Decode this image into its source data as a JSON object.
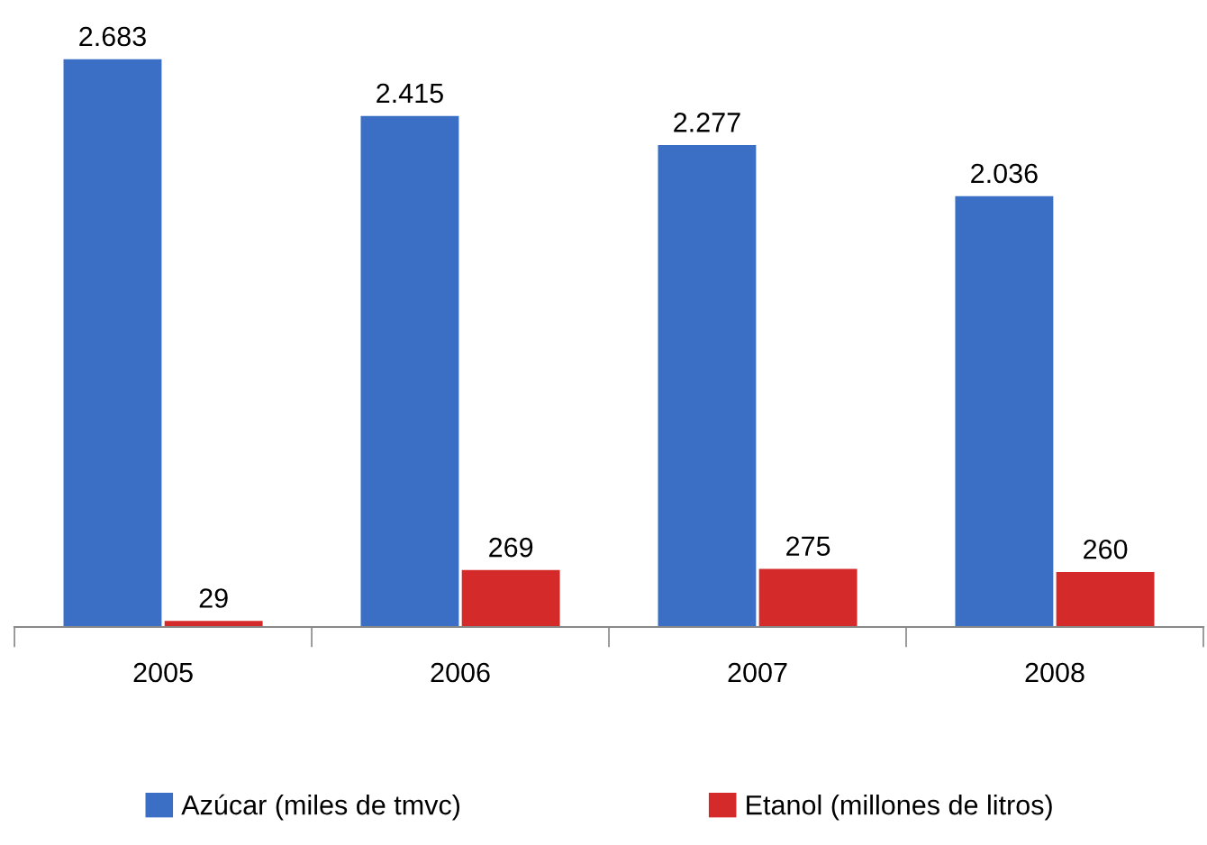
{
  "chart_data": {
    "type": "bar",
    "categories": [
      "2005",
      "2006",
      "2007",
      "2008"
    ],
    "series": [
      {
        "name": "Azúcar (miles de tmvc)",
        "color": "#3b6fc6",
        "values": [
          2683,
          2415,
          2277,
          2036
        ],
        "value_labels": [
          "2.683",
          "2.415",
          "2.277",
          "2.036"
        ]
      },
      {
        "name": "Etanol (millones de litros)",
        "color": "#d42a2a",
        "values": [
          29,
          269,
          275,
          260
        ],
        "value_labels": [
          "29",
          "269",
          "275",
          "260"
        ]
      }
    ],
    "grid": false,
    "legend": "bottom"
  }
}
